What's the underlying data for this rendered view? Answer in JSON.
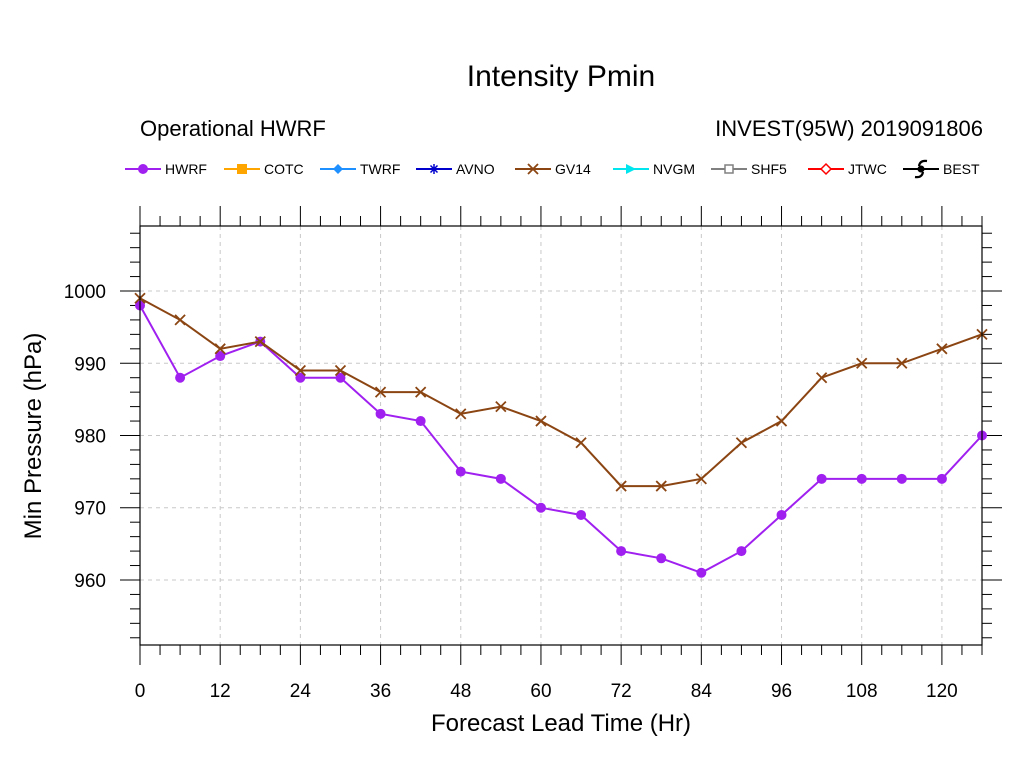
{
  "chart_data": {
    "type": "line",
    "title": "Intensity Pmin",
    "subtitle_left": "Operational HWRF",
    "subtitle_right": "INVEST(95W) 2019091806",
    "xlabel": "Forecast Lead Time (Hr)",
    "ylabel": "Min Pressure (hPa)",
    "xlim": [
      0,
      126
    ],
    "ylim": [
      951,
      1009
    ],
    "xticks": [
      0,
      12,
      24,
      36,
      48,
      60,
      72,
      84,
      96,
      108,
      120
    ],
    "yticks": [
      960,
      970,
      980,
      990,
      1000
    ],
    "grid": true,
    "legend_position": "top",
    "legend": [
      {
        "name": "HWRF",
        "color": "#a020f0",
        "marker": "circle"
      },
      {
        "name": "COTC",
        "color": "#ffa500",
        "marker": "square"
      },
      {
        "name": "TWRF",
        "color": "#1e90ff",
        "marker": "diamond"
      },
      {
        "name": "AVNO",
        "color": "#0000cd",
        "marker": "asterisk"
      },
      {
        "name": "GV14",
        "color": "#8b4513",
        "marker": "x"
      },
      {
        "name": "NVGM",
        "color": "#00e5ee",
        "marker": "triangle"
      },
      {
        "name": "SHF5",
        "color": "#808080",
        "marker": "open-square"
      },
      {
        "name": "JTWC",
        "color": "#ff0000",
        "marker": "open-diamond"
      },
      {
        "name": "BEST",
        "color": "#000000",
        "marker": "hurricane"
      }
    ],
    "x": [
      0,
      6,
      12,
      18,
      24,
      30,
      36,
      42,
      48,
      54,
      60,
      66,
      72,
      78,
      84,
      90,
      96,
      102,
      108,
      114,
      120,
      126
    ],
    "series": [
      {
        "name": "HWRF",
        "color": "#a020f0",
        "marker": "circle",
        "values": [
          998,
          988,
          991,
          993,
          988,
          988,
          983,
          982,
          975,
          974,
          970,
          969,
          964,
          963,
          961,
          964,
          969,
          974,
          974,
          974,
          974,
          980
        ]
      },
      {
        "name": "GV14",
        "color": "#8b4513",
        "marker": "x",
        "values": [
          999,
          996,
          992,
          993,
          989,
          989,
          986,
          986,
          983,
          984,
          982,
          979,
          973,
          973,
          974,
          979,
          982,
          988,
          990,
          990,
          992,
          994
        ]
      }
    ]
  }
}
